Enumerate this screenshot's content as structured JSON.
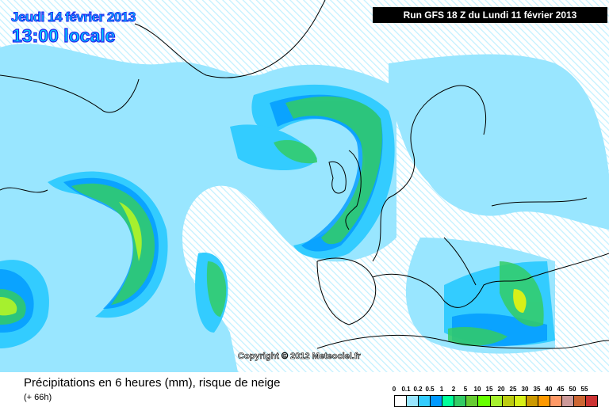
{
  "header": {
    "date": "Jeudi 14 février 2013",
    "time": "13:00 locale",
    "run": "Run GFS 18 Z du Lundi 11 février 2013"
  },
  "copyright": "Copyright © 2012 Meteociel.fr",
  "footer": {
    "title": "Précipitations en 6 heures (mm), risque de neige",
    "lead": "(+ 66h)"
  },
  "legend": {
    "labels": [
      "0",
      "0.1",
      "0.2",
      "0.5",
      "1",
      "2",
      "5",
      "10",
      "15",
      "20",
      "25",
      "30",
      "35",
      "40",
      "45",
      "50",
      "55"
    ],
    "colors": [
      "#ffffff",
      "#99e6ff",
      "#33ccff",
      "#0099ff",
      "#00ff99",
      "#33cc66",
      "#66cc33",
      "#66ff00",
      "#a6f02e",
      "#bccc10",
      "#d8f018",
      "#cc9900",
      "#ff9900",
      "#ff9966",
      "#cc9999",
      "#cc6633",
      "#cc3333"
    ]
  }
}
